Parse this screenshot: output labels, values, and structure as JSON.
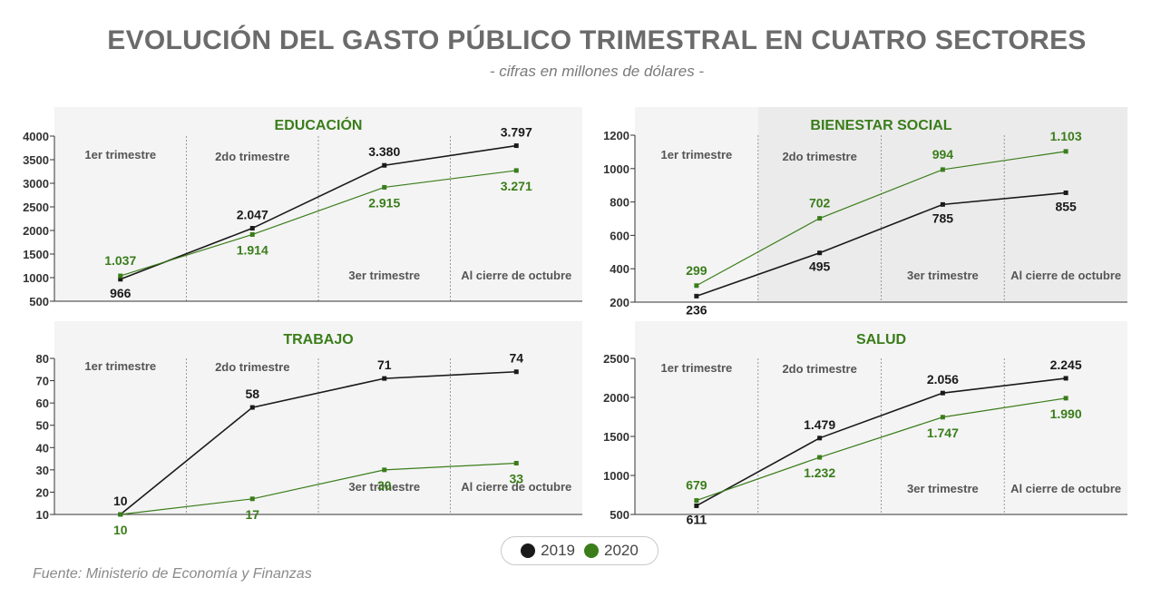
{
  "title": "EVOLUCIÓN DEL GASTO PÚBLICO TRIMESTRAL EN CUATRO SECTORES",
  "subtitle": "- cifras en millones de dólares -",
  "source": "Fuente: Ministerio de Economía y Finanzas",
  "colors": {
    "y2019": "#1a1a1a",
    "y2020": "#3a7d1a",
    "panel_title": "#3a7d1a"
  },
  "legend": [
    {
      "label": "2019",
      "color": "#1a1a1a"
    },
    {
      "label": "2020",
      "color": "#3a7d1a"
    }
  ],
  "chart_data": [
    {
      "type": "line",
      "title": "EDUCACIÓN",
      "categories": [
        "1er trimestre",
        "2do trimestre",
        "3er trimestre",
        "Al cierre de octubre"
      ],
      "ylim": [
        500,
        4000
      ],
      "yticks": [
        "500",
        "1000",
        "1500",
        "2000",
        "2500",
        "3000",
        "3500",
        "4000"
      ],
      "series": [
        {
          "name": "2019",
          "values": [
            966,
            2047,
            3380,
            3797
          ],
          "labels": [
            "966",
            "2.047",
            "3.380",
            "3.797"
          ]
        },
        {
          "name": "2020",
          "values": [
            1037,
            1914,
            2915,
            3271
          ],
          "labels": [
            "1.037",
            "1.914",
            "2.915",
            "3.271"
          ]
        }
      ]
    },
    {
      "type": "line",
      "title": "BIENESTAR SOCIAL",
      "categories": [
        "1er trimestre",
        "2do trimestre",
        "3er trimestre",
        "Al cierre de octubre"
      ],
      "ylim": [
        200,
        1200
      ],
      "yticks": [
        "200",
        "400",
        "600",
        "800",
        "1000",
        "1200"
      ],
      "series": [
        {
          "name": "2019",
          "values": [
            236,
            495,
            785,
            855
          ],
          "labels": [
            "236",
            "495",
            "785",
            "855"
          ]
        },
        {
          "name": "2020",
          "values": [
            299,
            702,
            994,
            1103
          ],
          "labels": [
            "299",
            "702",
            "994",
            "1.103"
          ]
        }
      ]
    },
    {
      "type": "line",
      "title": "TRABAJO",
      "categories": [
        "1er trimestre",
        "2do trimestre",
        "3er trimestre",
        "Al cierre de octubre"
      ],
      "ylim": [
        10,
        80
      ],
      "yticks": [
        "10",
        "20",
        "30",
        "40",
        "50",
        "60",
        "70",
        "80"
      ],
      "series": [
        {
          "name": "2019",
          "values": [
            10,
            58,
            71,
            74
          ],
          "labels": [
            "10",
            "58",
            "71",
            "74"
          ]
        },
        {
          "name": "2020",
          "values": [
            10,
            17,
            30,
            33
          ],
          "labels": [
            "10",
            "17",
            "30",
            "33"
          ]
        }
      ]
    },
    {
      "type": "line",
      "title": "SALUD",
      "categories": [
        "1er trimestre",
        "2do trimestre",
        "3er trimestre",
        "Al cierre de octubre"
      ],
      "ylim": [
        500,
        2500
      ],
      "yticks": [
        "500",
        "1000",
        "1500",
        "2000",
        "2500"
      ],
      "series": [
        {
          "name": "2019",
          "values": [
            611,
            1479,
            2056,
            2245
          ],
          "labels": [
            "611",
            "1.479",
            "2.056",
            "2.245"
          ]
        },
        {
          "name": "2020",
          "values": [
            679,
            1232,
            1747,
            1990
          ],
          "labels": [
            "679",
            "1.232",
            "1.747",
            "1.990"
          ]
        }
      ]
    }
  ]
}
